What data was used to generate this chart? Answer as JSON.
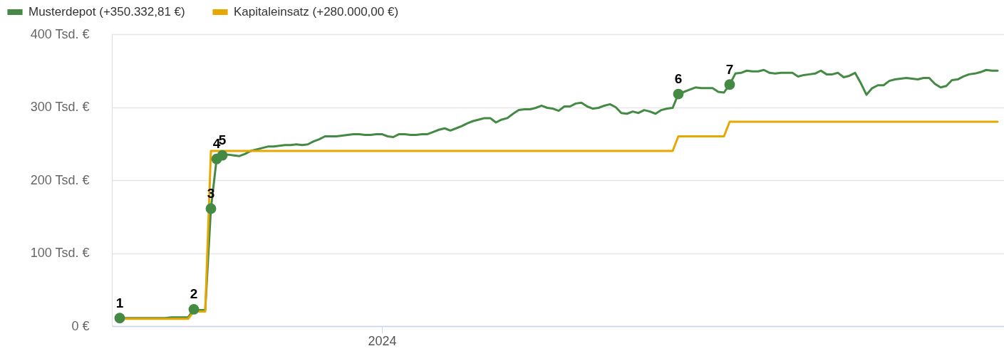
{
  "chart_data": {
    "type": "line",
    "ylim": [
      0,
      400
    ],
    "categories": [
      null,
      null,
      null,
      null,
      null,
      null,
      null,
      null,
      null,
      null,
      null,
      null,
      null,
      null,
      null,
      null,
      null,
      null,
      null,
      null,
      null,
      null,
      null,
      null,
      null,
      null,
      null,
      null,
      null,
      null,
      null,
      null,
      null,
      null,
      null,
      null,
      null,
      null,
      null,
      null,
      null,
      null,
      null,
      null,
      null,
      null,
      "2024",
      null,
      null,
      null,
      null,
      null,
      null,
      null,
      null,
      null,
      null,
      null,
      null,
      null,
      null,
      null,
      null,
      null,
      null,
      null,
      null,
      null,
      null,
      null,
      null,
      null,
      null,
      null,
      null,
      null,
      null,
      null,
      null,
      null,
      null,
      null,
      null,
      null,
      null,
      null,
      null,
      null,
      null,
      null,
      null,
      null,
      null,
      null,
      null,
      null,
      null,
      null,
      null,
      null,
      null,
      null,
      null,
      null,
      null,
      null,
      null,
      null,
      null,
      null,
      null,
      null,
      null,
      null,
      null,
      null,
      null,
      null,
      null,
      null,
      null,
      null,
      null,
      null,
      null,
      null,
      null,
      null,
      null,
      null,
      null,
      null,
      null,
      null,
      null,
      null,
      null,
      null,
      null,
      null,
      null,
      null,
      null,
      null,
      null,
      null,
      null,
      null,
      null,
      null,
      null,
      null,
      null,
      null,
      null
    ],
    "yticks": [
      {
        "value": 0,
        "label": "0 €"
      },
      {
        "value": 100,
        "label": "100 Tsd. €"
      },
      {
        "value": 200,
        "label": "200 Tsd. €"
      },
      {
        "value": 300,
        "label": "300 Tsd. €"
      },
      {
        "value": 400,
        "label": "400 Tsd. €"
      }
    ],
    "grid": "y",
    "legend": "top left",
    "marker": "none",
    "line_style": "solid",
    "series": [
      {
        "name": "Musterdepot (+350.332,81 €)",
        "color": "#448a44",
        "type": "line",
        "values": [
          11,
          11,
          11,
          11,
          11,
          11,
          11,
          11,
          11,
          12,
          12,
          12,
          12,
          23,
          22,
          22,
          161,
          229,
          234,
          235,
          234,
          233,
          236,
          240,
          242,
          244,
          246,
          246,
          247,
          248,
          248,
          249,
          248,
          249,
          253,
          256,
          260,
          260,
          260,
          261,
          262,
          263,
          263,
          262,
          262,
          263,
          263,
          260,
          259,
          263,
          263,
          262,
          262,
          263,
          263,
          266,
          269,
          271,
          268,
          271,
          274,
          278,
          281,
          283,
          285,
          285,
          279,
          283,
          285,
          291,
          296,
          297,
          297,
          299,
          302,
          299,
          298,
          295,
          301,
          301,
          305,
          306,
          301,
          298,
          299,
          302,
          304,
          300,
          292,
          291,
          294,
          292,
          296,
          294,
          291,
          296,
          298,
          299,
          318,
          321,
          324,
          327,
          326,
          326,
          326,
          321,
          320,
          331,
          346,
          347,
          350,
          349,
          349,
          351,
          347,
          346,
          347,
          347,
          347,
          342,
          344,
          345,
          346,
          350,
          345,
          345,
          347,
          341,
          343,
          347,
          333,
          317,
          326,
          330,
          330,
          336,
          338,
          339,
          340,
          339,
          338,
          340,
          340,
          332,
          327,
          329,
          337,
          338,
          342,
          345,
          346,
          348,
          351,
          350,
          350
        ]
      },
      {
        "name": "Kapitaleinsatz (+280.000,00 €)",
        "color": "#e6a800",
        "type": "line",
        "values": [
          null,
          10,
          10,
          10,
          10,
          10,
          10,
          10,
          10,
          10,
          10,
          10,
          10,
          20,
          20,
          20,
          240,
          240,
          240,
          240,
          240,
          240,
          240,
          240,
          240,
          240,
          240,
          240,
          240,
          240,
          240,
          240,
          240,
          240,
          240,
          240,
          240,
          240,
          240,
          240,
          240,
          240,
          240,
          240,
          240,
          240,
          240,
          240,
          240,
          240,
          240,
          240,
          240,
          240,
          240,
          240,
          240,
          240,
          240,
          240,
          240,
          240,
          240,
          240,
          240,
          240,
          240,
          240,
          240,
          240,
          240,
          240,
          240,
          240,
          240,
          240,
          240,
          240,
          240,
          240,
          240,
          240,
          240,
          240,
          240,
          240,
          240,
          240,
          240,
          240,
          240,
          240,
          240,
          240,
          240,
          240,
          240,
          240,
          260,
          260,
          260,
          260,
          260,
          260,
          260,
          260,
          260,
          280,
          280,
          280,
          280,
          280,
          280,
          280,
          280,
          280,
          280,
          280,
          280,
          280,
          280,
          280,
          280,
          280,
          280,
          280,
          280,
          280,
          280,
          280,
          280,
          280,
          280,
          280,
          280,
          280,
          280,
          280,
          280,
          280,
          280,
          280,
          280,
          280,
          280,
          280,
          280,
          280,
          280,
          280,
          280,
          280,
          280,
          280,
          280
        ]
      },
      {
        "color": "#448a44",
        "type": "scatter",
        "marker": "circle",
        "values": [
          11,
          null,
          null,
          null,
          null,
          null,
          null,
          null,
          null,
          null,
          null,
          null,
          null,
          23,
          null,
          null,
          161,
          229,
          234,
          null,
          null,
          null,
          null,
          null,
          null,
          null,
          null,
          null,
          null,
          null,
          null,
          null,
          null,
          null,
          null,
          null,
          null,
          null,
          null,
          null,
          null,
          null,
          null,
          null,
          null,
          null,
          null,
          null,
          null,
          null,
          null,
          null,
          null,
          null,
          null,
          null,
          null,
          null,
          null,
          null,
          null,
          null,
          null,
          null,
          null,
          null,
          null,
          null,
          null,
          null,
          null,
          null,
          null,
          null,
          null,
          null,
          null,
          null,
          null,
          null,
          null,
          null,
          null,
          null,
          null,
          null,
          null,
          null,
          null,
          null,
          null,
          null,
          null,
          null,
          null,
          null,
          null,
          null,
          318,
          null,
          null,
          null,
          null,
          null,
          null,
          null,
          null,
          331,
          null,
          null,
          null,
          null,
          null,
          null,
          null,
          null,
          null,
          null,
          null,
          null,
          null,
          null,
          null,
          null,
          null,
          null,
          null,
          null,
          null,
          null,
          null,
          null,
          null,
          null,
          null,
          null,
          null,
          null,
          null,
          null,
          null,
          null,
          null,
          null,
          null,
          null,
          null,
          null,
          null,
          null,
          null,
          null,
          null,
          null,
          null
        ]
      }
    ],
    "annotations": [
      "1",
      "2",
      "3",
      "4",
      "5",
      "6",
      "7"
    ]
  }
}
